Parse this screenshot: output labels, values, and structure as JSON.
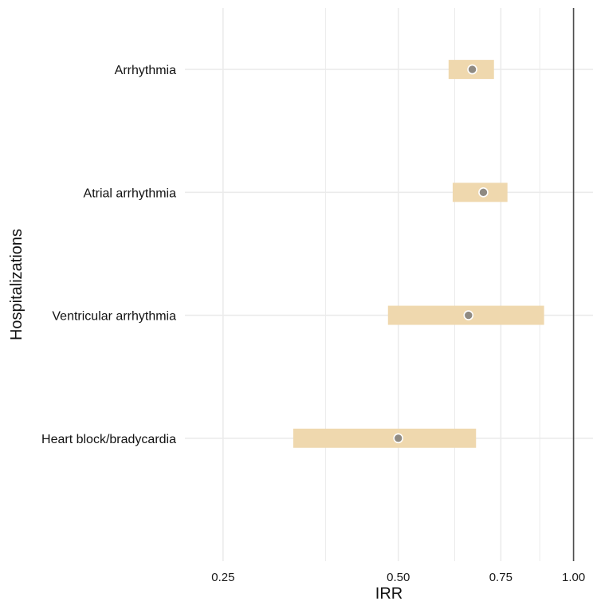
{
  "chart_data": {
    "type": "forest",
    "xlabel": "IRR",
    "ylabel": "Hospitalizations",
    "x_scale": "log",
    "xlim": [
      0.215,
      1.08
    ],
    "x_ticks": [
      0.25,
      0.5,
      0.75,
      1.0
    ],
    "x_tick_labels": [
      "0.25",
      "0.50",
      "0.75",
      "1.00"
    ],
    "x_minor_ticks": [
      0.375,
      0.625,
      0.875
    ],
    "reference_line": 1.0,
    "grid": true,
    "categories": [
      "Arrhythmia",
      "Atrial arrhythmia",
      "Ventricular arrhythmia",
      "Heart block/bradycardia"
    ],
    "estimates": [
      0.67,
      0.7,
      0.66,
      0.5
    ],
    "ci_low": [
      0.61,
      0.62,
      0.48,
      0.33
    ],
    "ci_high": [
      0.73,
      0.77,
      0.89,
      0.68
    ],
    "colors": {
      "ci_band": "#efd8ae",
      "point_fill": "#8f8a82",
      "point_stroke": "#ffffff",
      "grid": "#ebebeb",
      "reference_line": "#4d4d4d"
    }
  }
}
